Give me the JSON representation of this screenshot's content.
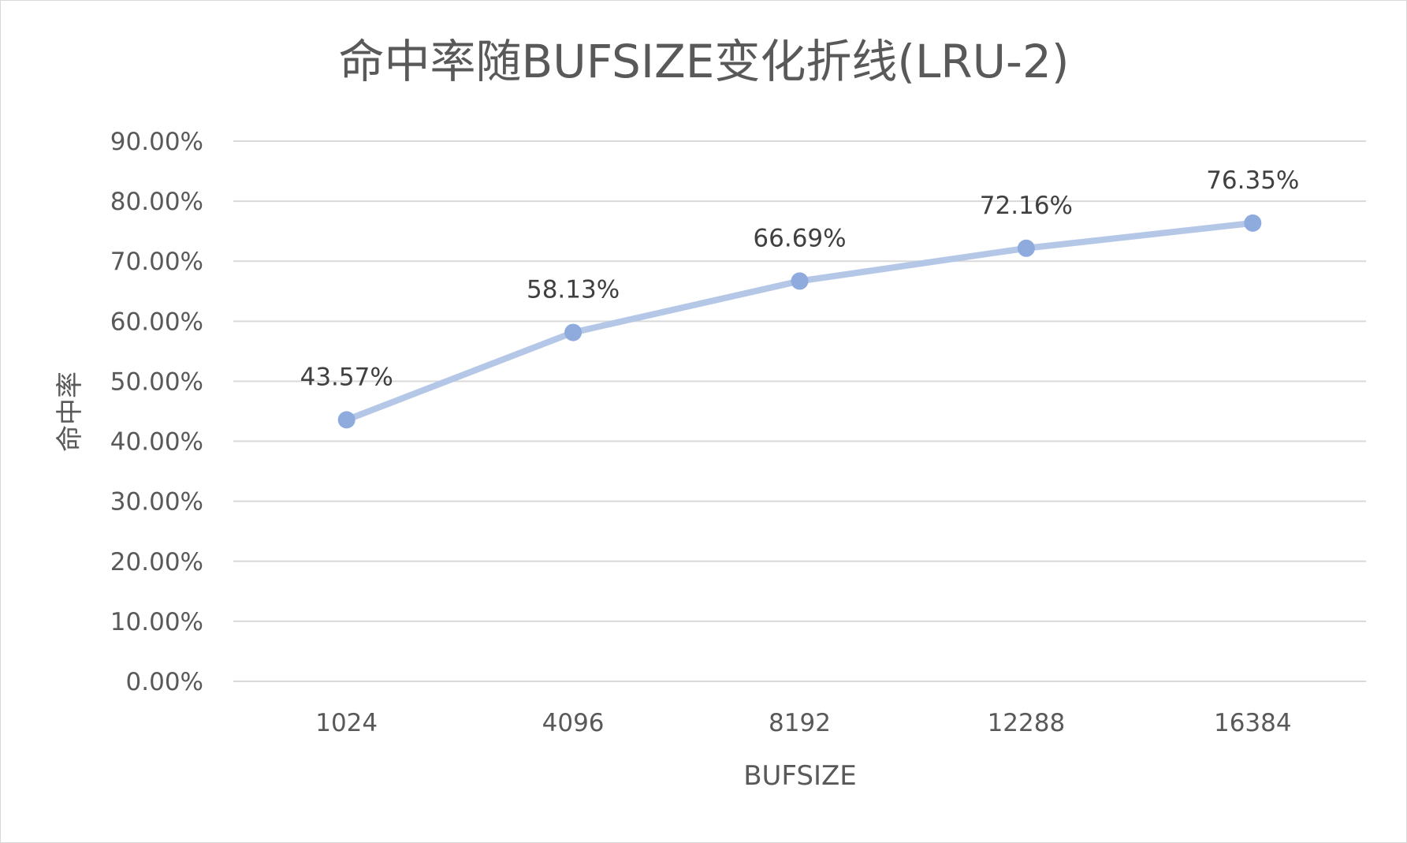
{
  "chart_data": {
    "type": "line",
    "title": "命中率随BUFSIZE变化折线(LRU-2)",
    "xlabel": "BUFSIZE",
    "ylabel": "命中率",
    "categories": [
      "1024",
      "4096",
      "8192",
      "12288",
      "16384"
    ],
    "series": [
      {
        "values": [
          43.57,
          58.13,
          66.69,
          72.16,
          76.35
        ],
        "data_labels": [
          "43.57%",
          "58.13%",
          "66.69%",
          "72.16%",
          "76.35%"
        ]
      }
    ],
    "ylim": [
      0,
      90
    ],
    "y_ticks": [
      0,
      10,
      20,
      30,
      40,
      50,
      60,
      70,
      80,
      90
    ],
    "y_tick_labels": [
      "0.00%",
      "10.00%",
      "20.00%",
      "30.00%",
      "40.00%",
      "50.00%",
      "60.00%",
      "70.00%",
      "80.00%",
      "90.00%"
    ],
    "grid": true,
    "legend": "none",
    "colors": {
      "line": "#b4c7e7",
      "marker": "#8faadc",
      "grid": "#d9d9d9",
      "text": "#595959",
      "data_label": "#404040"
    }
  }
}
